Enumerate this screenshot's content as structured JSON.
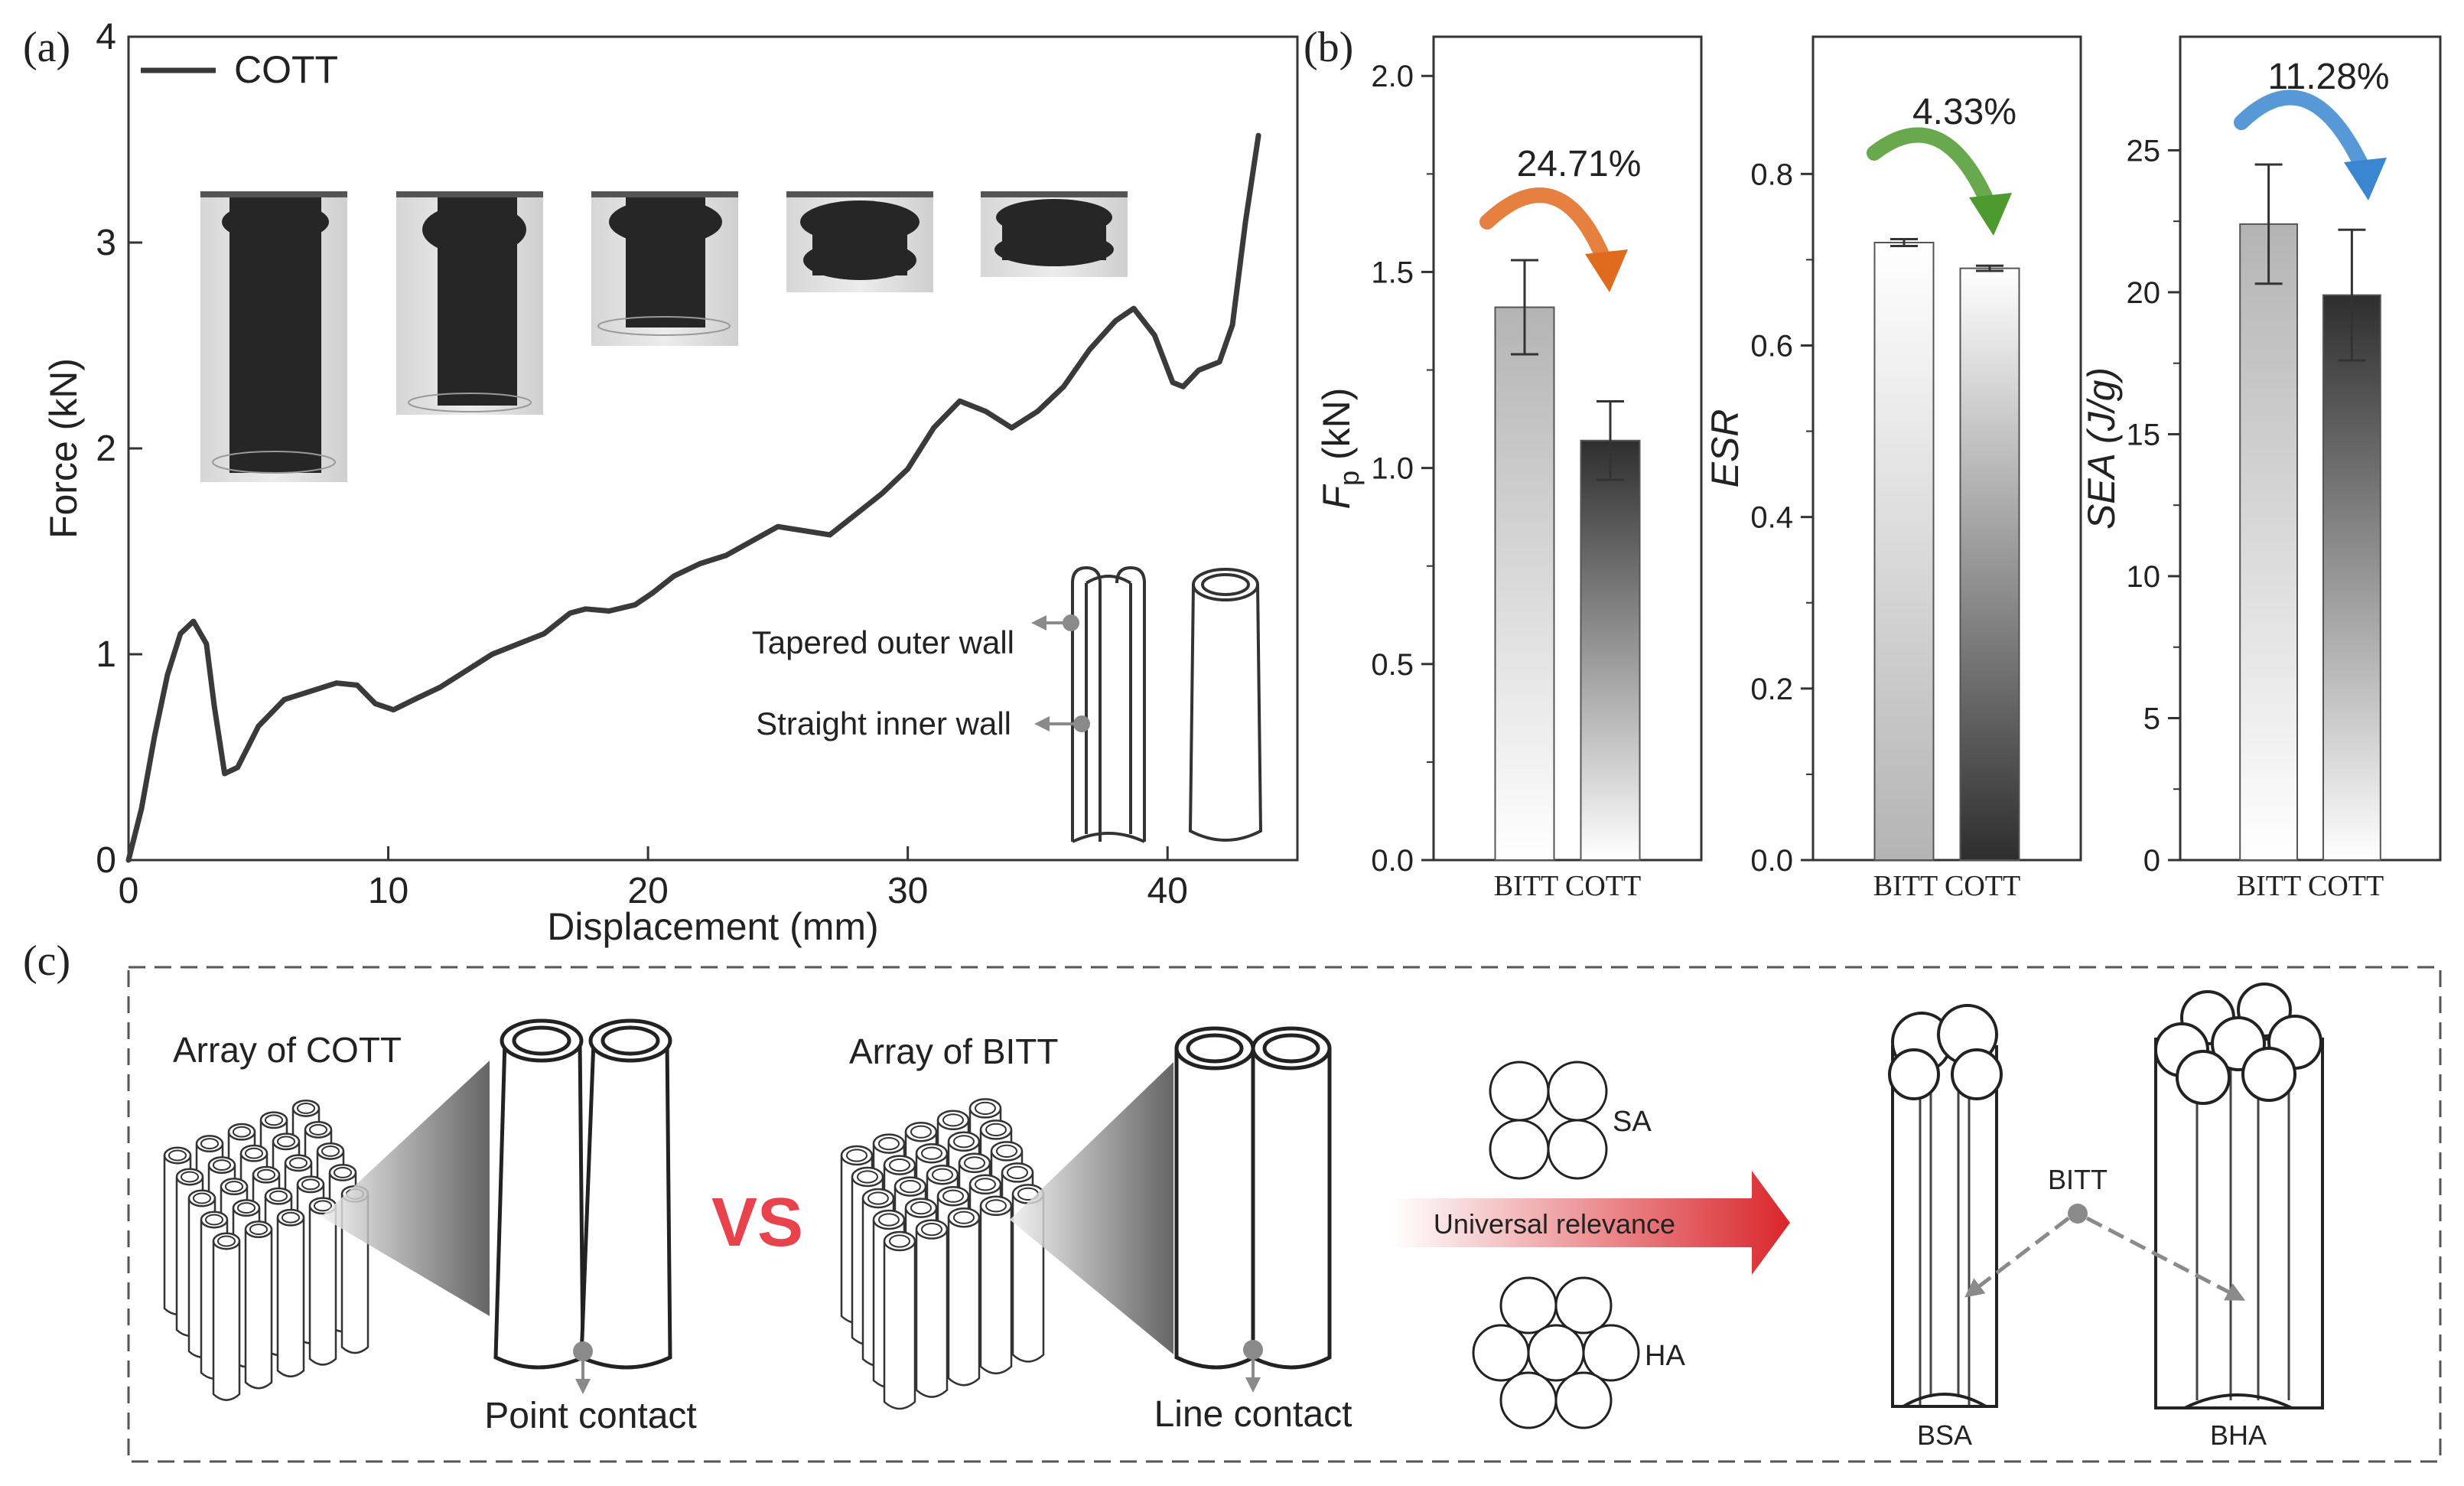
{
  "panel_labels": {
    "a": "(a)",
    "b": "(b)",
    "c": "(c)"
  },
  "chart_data": [
    {
      "id": "a",
      "type": "line",
      "title": "",
      "xlabel": "Displacement (mm)",
      "ylabel": "Force (kN)",
      "xlim": [
        0,
        45
      ],
      "ylim": [
        0,
        4
      ],
      "xticks": [
        0,
        10,
        20,
        30,
        40
      ],
      "yticks": [
        0,
        1,
        2,
        3,
        4
      ],
      "legend": "top-left",
      "series": [
        {
          "name": "COTT",
          "color": "#3a3a3a",
          "x": [
            0,
            0.5,
            1.0,
            1.5,
            2.0,
            2.5,
            3.0,
            3.3,
            3.7,
            4.2,
            5.0,
            6.0,
            7.0,
            8.0,
            8.8,
            9.5,
            10.2,
            11.0,
            12.0,
            13.0,
            14.0,
            15.0,
            16.0,
            17.0,
            17.6,
            18.5,
            19.5,
            20.2,
            21.0,
            22.0,
            23.0,
            24.0,
            25.0,
            26.0,
            27.0,
            28.0,
            29.0,
            30.0,
            31.0,
            32.0,
            33.0,
            34.0,
            35.0,
            36.0,
            37.0,
            38.0,
            38.7,
            39.5,
            40.2,
            40.6,
            41.2,
            42.0,
            42.5,
            43.0,
            43.5
          ],
          "y": [
            0,
            0.25,
            0.6,
            0.9,
            1.1,
            1.16,
            1.05,
            0.75,
            0.42,
            0.45,
            0.65,
            0.78,
            0.82,
            0.86,
            0.85,
            0.76,
            0.73,
            0.78,
            0.84,
            0.92,
            1.0,
            1.05,
            1.1,
            1.2,
            1.22,
            1.21,
            1.24,
            1.3,
            1.38,
            1.44,
            1.48,
            1.55,
            1.62,
            1.6,
            1.58,
            1.68,
            1.78,
            1.9,
            2.1,
            2.23,
            2.18,
            2.1,
            2.18,
            2.3,
            2.48,
            2.62,
            2.68,
            2.55,
            2.32,
            2.3,
            2.38,
            2.42,
            2.6,
            3.1,
            3.52
          ]
        }
      ],
      "insets": {
        "tube_labels": [
          "Tapered outer wall",
          "Straight inner wall"
        ],
        "photo_count": 5
      }
    },
    {
      "id": "b1",
      "type": "bar",
      "categories": [
        "BITT",
        "COTT"
      ],
      "values": [
        1.41,
        1.07
      ],
      "error": [
        0.12,
        0.1
      ],
      "ylabel_main": "F",
      "ylabel_sub": "p",
      "ylabel_unit": " (kN)",
      "ylim": [
        0,
        2.1
      ],
      "yticks": [
        0,
        0.5,
        1.0,
        1.5,
        2.0
      ],
      "ytick_labels": [
        "0.0",
        "0.5",
        "1.0",
        "1.5",
        "2.0"
      ],
      "annotation": "24.71%",
      "arrow_color": "#e06a1e"
    },
    {
      "id": "b2",
      "type": "bar",
      "categories": [
        "BITT",
        "COTT"
      ],
      "values": [
        0.72,
        0.69
      ],
      "error": [
        0.004,
        0.003
      ],
      "ylabel": "ESR",
      "ylim": [
        0,
        0.96
      ],
      "yticks": [
        0,
        0.2,
        0.4,
        0.6,
        0.8
      ],
      "ytick_labels": [
        "0.0",
        "0.2",
        "0.4",
        "0.6",
        "0.8"
      ],
      "annotation": "4.33%",
      "arrow_color": "#4d9a2e"
    },
    {
      "id": "b3",
      "type": "bar",
      "categories": [
        "BITT",
        "COTT"
      ],
      "values": [
        22.4,
        19.9
      ],
      "error": [
        2.1,
        2.3
      ],
      "ylabel": "SEA (J/g)",
      "ylim": [
        0,
        29
      ],
      "yticks": [
        0,
        5,
        10,
        15,
        20,
        25
      ],
      "ytick_labels": [
        "0",
        "5",
        "10",
        "15",
        "20",
        "25"
      ],
      "annotation": "11.28%",
      "arrow_color": "#3a86d0"
    }
  ],
  "panel_c": {
    "array_cott_label": "Array of COTT",
    "array_bitt_label": "Array of BITT",
    "vs_label": "VS",
    "point_contact": "Point contact",
    "line_contact": "Line contact",
    "universal_label": "Universal relevance",
    "sa_label": "SA",
    "ha_label": "HA",
    "bitt_label": "BITT",
    "bsa_label": "BSA",
    "bha_label": "BHA"
  }
}
